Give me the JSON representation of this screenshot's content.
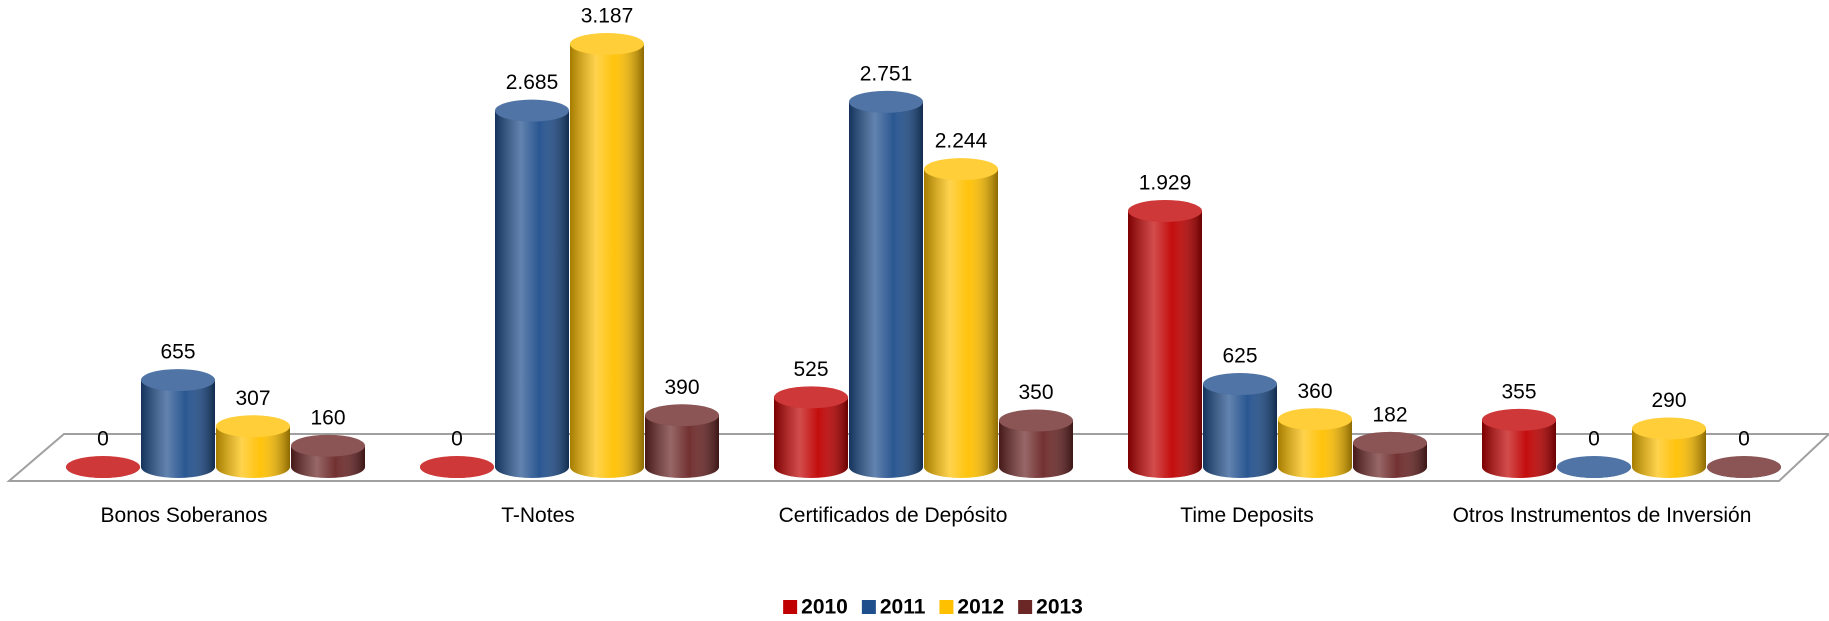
{
  "chart_data": {
    "type": "bar",
    "categories": [
      "Bonos Soberanos",
      "T-Notes",
      "Certificados de Depósito",
      "Time Deposits",
      "Otros Instrumentos de Inversión"
    ],
    "series": [
      {
        "name": "2010",
        "color": "#c00000",
        "values": [
          0,
          0,
          525,
          1929,
          355
        ],
        "value_labels": [
          "0",
          "0",
          "525",
          "1.929",
          "355"
        ]
      },
      {
        "name": "2011",
        "color": "#1f4e8c",
        "values": [
          655,
          2685,
          2751,
          625,
          0
        ],
        "value_labels": [
          "655",
          "2.685",
          "2.751",
          "625",
          "0"
        ]
      },
      {
        "name": "2012",
        "color": "#ffc000",
        "values": [
          307,
          3187,
          2244,
          360,
          290
        ],
        "value_labels": [
          "307",
          "3.187",
          "2.244",
          "360",
          "290"
        ]
      },
      {
        "name": "2013",
        "color": "#6b2626",
        "values": [
          160,
          390,
          350,
          182,
          0
        ],
        "value_labels": [
          "160",
          "390",
          "350",
          "182",
          "0"
        ]
      }
    ],
    "legend": "bottom"
  }
}
